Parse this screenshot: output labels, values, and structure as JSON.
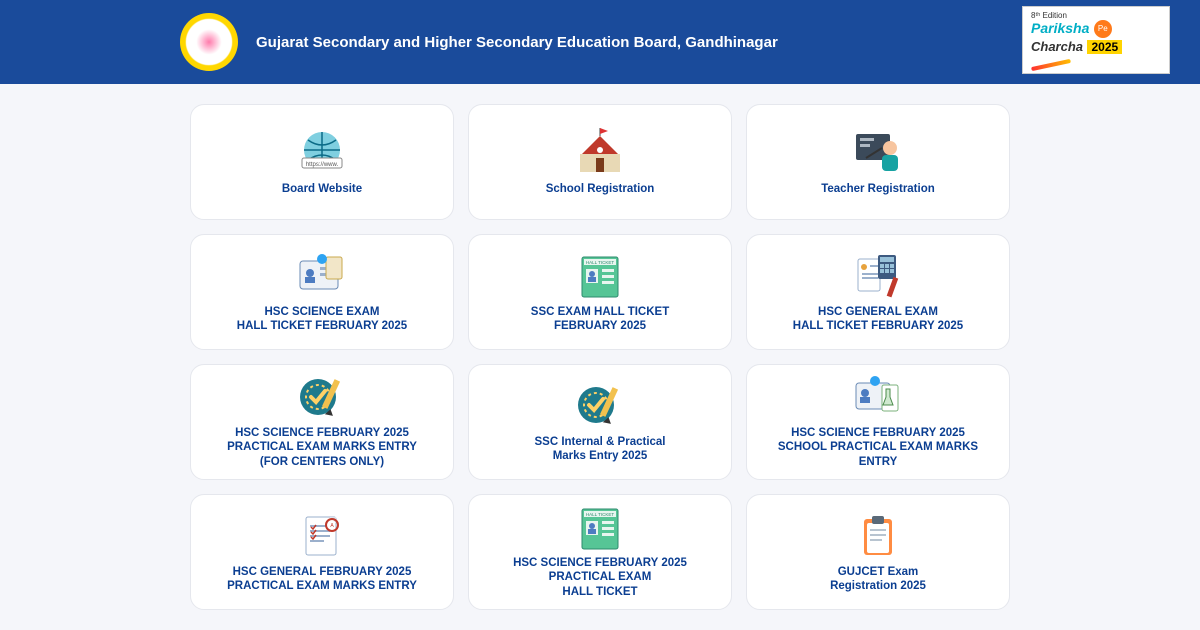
{
  "header": {
    "title": "Gujarat Secondary and Higher Secondary\nEducation Board, Gandhinagar",
    "promo": {
      "edition": "8ᵗʰ Edition",
      "line1": "Pariksha",
      "pe": "Pe",
      "line2": "Charcha",
      "year": "2025"
    }
  },
  "colors": {
    "header_bg": "#1a4b9b",
    "card_text": "#0b3e91",
    "page_bg": "#f5f6fa"
  },
  "cards": [
    {
      "id": "board-website",
      "label": "Board Website",
      "icon": "globe"
    },
    {
      "id": "school-registration",
      "label": "School Registration",
      "icon": "school"
    },
    {
      "id": "teacher-registration",
      "label": "Teacher Registration",
      "icon": "teacher"
    },
    {
      "id": "hsc-sci-hallticket",
      "label": "HSC SCIENCE EXAM\nHALL TICKET FEBRUARY 2025",
      "icon": "id-card"
    },
    {
      "id": "ssc-hallticket",
      "label": "SSC EXAM HALL TICKET\nFEBRUARY 2025",
      "icon": "hall-ticket"
    },
    {
      "id": "hsc-gen-hallticket",
      "label": "HSC GENERAL EXAM\nHALL TICKET FEBRUARY 2025",
      "icon": "calc-doc"
    },
    {
      "id": "hsc-sci-practical-ctr",
      "label": "HSC SCIENCE FEBRUARY 2025\nPRACTICAL EXAM MARKS ENTRY\n(FOR CENTERS ONLY)",
      "icon": "check-pencil"
    },
    {
      "id": "ssc-internal",
      "label": "SSC Internal & Practical\nMarks Entry 2025",
      "icon": "check-pencil"
    },
    {
      "id": "hsc-sci-school-prac",
      "label": "HSC SCIENCE FEBRUARY 2025\nSCHOOL PRACTICAL EXAM MARKS\nENTRY",
      "icon": "id-lab"
    },
    {
      "id": "hsc-gen-practical",
      "label": "HSC GENERAL FEBRUARY 2025\nPRACTICAL EXAM MARKS ENTRY",
      "icon": "doc-stamp"
    },
    {
      "id": "hsc-sci-prac-hall",
      "label": "HSC SCIENCE FEBRUARY 2025\nPRACTICAL EXAM\nHALL TICKET",
      "icon": "hall-ticket"
    },
    {
      "id": "gujcet",
      "label": "GUJCET Exam\nRegistration 2025",
      "icon": "clipboard"
    }
  ]
}
